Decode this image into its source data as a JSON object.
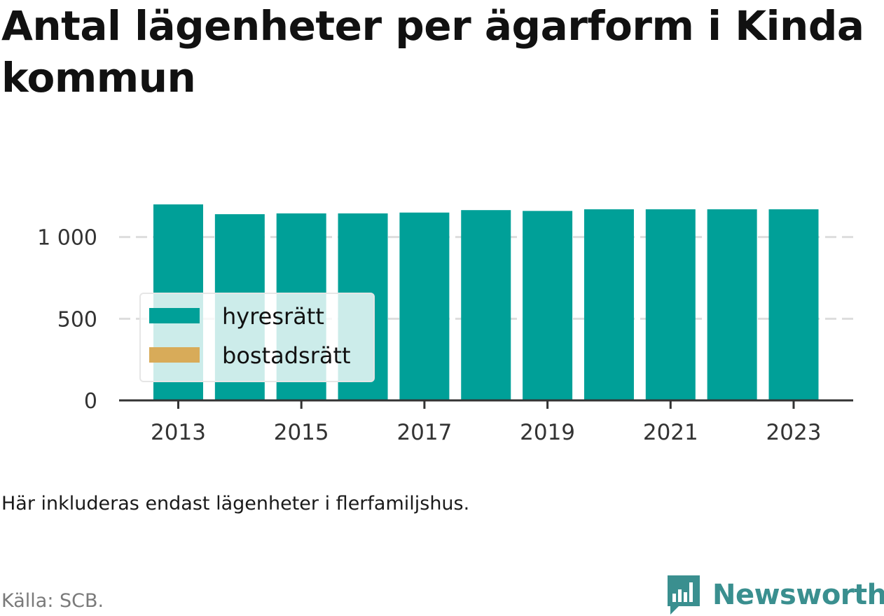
{
  "header": {
    "title": "Antal lägenheter per ägarform i Kinda kommun"
  },
  "footer": {
    "caption": "Här inkluderas endast lägenheter i flerfamiljshus.",
    "source": "Källa: SCB.",
    "brand": "Newsworthy"
  },
  "colors": {
    "hyresratt": "#00a098",
    "bostadsratt": "#d8ab59",
    "grid": "#dddddd",
    "axis": "#333333",
    "brand": "#3a8f8f"
  },
  "chart_data": {
    "type": "bar",
    "stacked": true,
    "categories": [
      "2013",
      "2014",
      "2015",
      "2016",
      "2017",
      "2018",
      "2019",
      "2020",
      "2021",
      "2022",
      "2023"
    ],
    "series": [
      {
        "name": "hyresrätt",
        "values": [
          1200,
          1140,
          1145,
          1145,
          1150,
          1165,
          1160,
          1170,
          1170,
          1170,
          1170
        ]
      },
      {
        "name": "bostadsrätt",
        "values": [
          0,
          0,
          0,
          0,
          0,
          0,
          0,
          0,
          0,
          0,
          0
        ]
      }
    ],
    "x_tick_labels": [
      "2013",
      "2015",
      "2017",
      "2019",
      "2021",
      "2023"
    ],
    "y_ticks": [
      0,
      500,
      1000
    ],
    "y_tick_labels": [
      "0",
      "500",
      "1 000"
    ],
    "ylim": [
      0,
      1200
    ],
    "grid": true,
    "legend_position": "bottom-left"
  }
}
